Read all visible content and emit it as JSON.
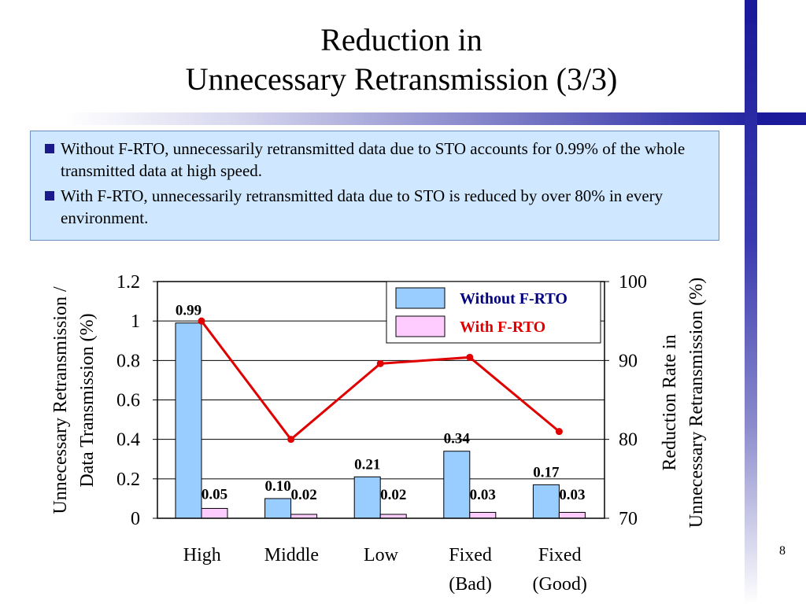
{
  "slide": {
    "title_line1": "Reduction in",
    "title_line2": "Unnecessary Retransmission (3/3)",
    "bullets": [
      "Without F-RTO, unnecessarily retransmitted data due to STO accounts for 0.99% of the whole transmitted data at high speed.",
      "With F-RTO, unnecessarily retransmitted data due to STO is reduced by over 80%  in every environment."
    ],
    "page_number": "8"
  },
  "colors": {
    "without_fill": "#99ccff",
    "with_fill": "#ffccff",
    "line": "#e00000",
    "legend_without_text": "#000080",
    "legend_with_text": "#e00000",
    "bullet_mark": "#1a1a8a",
    "box_fill": "#cfe8ff",
    "frame_blue": "#1a1a9a"
  },
  "chart_data": {
    "type": "bar",
    "categories": [
      [
        "High"
      ],
      [
        "Middle"
      ],
      [
        "Low"
      ],
      [
        "Fixed",
        "(Bad)"
      ],
      [
        "Fixed",
        "(Good)"
      ]
    ],
    "series": [
      {
        "name": "Without F-RTO",
        "values": [
          0.99,
          0.1,
          0.21,
          0.34,
          0.17
        ],
        "labels": [
          "0.99",
          "0.10",
          "0.21",
          "0.34",
          "0.17"
        ]
      },
      {
        "name": "With F-RTO",
        "values": [
          0.05,
          0.02,
          0.02,
          0.03,
          0.03
        ],
        "labels": [
          "0.05",
          "0.02",
          "0.02",
          "0.03",
          "0.03"
        ]
      }
    ],
    "line_series": {
      "values": [
        95,
        80,
        89.6,
        90.4,
        81
      ],
      "axis": "right"
    },
    "ylabel_left": [
      "Unnecessary Retransmission /",
      "Data Transmission (%)"
    ],
    "ylabel_right": [
      "Reduction Rate in",
      "Unnecessary Retransmission (%)"
    ],
    "ylim_left": [
      0,
      1.2
    ],
    "yticks_left": [
      "0",
      "0.2",
      "0.4",
      "0.6",
      "0.8",
      "1",
      "1.2"
    ],
    "ylim_right": [
      70,
      100
    ],
    "yticks_right": [
      "70",
      "80",
      "90",
      "100"
    ],
    "grid": true,
    "legend": "top-right"
  }
}
